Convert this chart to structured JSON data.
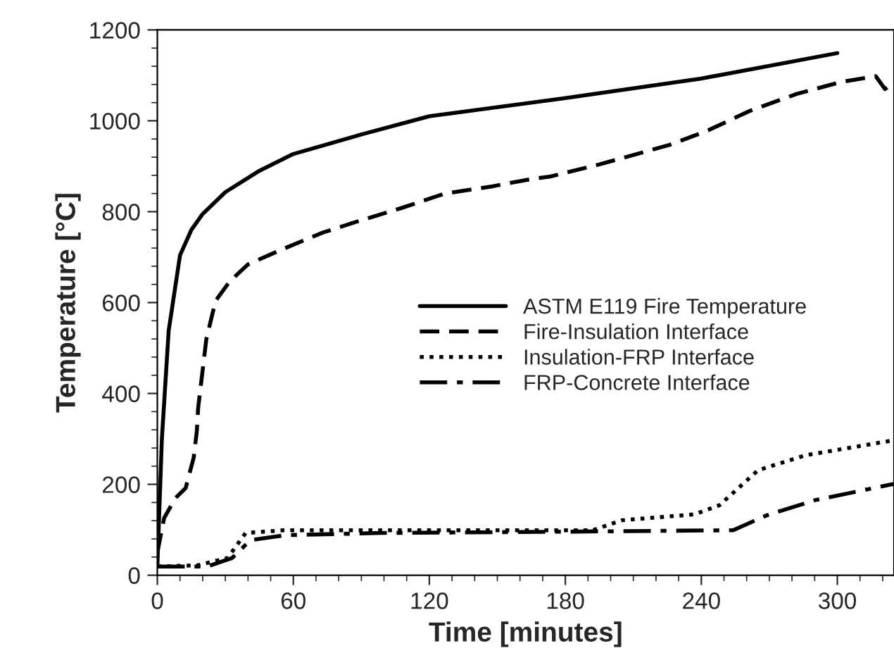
{
  "chart_data": {
    "type": "line",
    "xlabel": "Time [minutes]",
    "ylabel": "Temperature [°C]",
    "xlim": [
      0,
      325
    ],
    "xticks": [
      0,
      60,
      120,
      180,
      240,
      300
    ],
    "ylim": [
      0,
      1200
    ],
    "yticks": [
      0,
      200,
      400,
      600,
      800,
      1000,
      1200
    ],
    "grid": false,
    "legend": "right",
    "marker": "none",
    "series": [
      {
        "name": "ASTM E119 Fire Temperature",
        "color": "#000000",
        "line_style": "solid",
        "x": [
          0,
          2,
          5,
          10,
          15,
          20,
          30,
          45,
          60,
          90,
          120,
          180,
          240,
          300
        ],
        "values": [
          20,
          300,
          538,
          704,
          760,
          795,
          843,
          890,
          927,
          970,
          1010,
          1050,
          1093,
          1149
        ]
      },
      {
        "name": "Fire-Insulation Interface",
        "color": "#000000",
        "line_style": "dashed",
        "x": [
          0,
          3,
          8,
          12.5,
          16,
          17.4,
          18,
          21.6,
          25.7,
          32,
          40,
          55,
          73,
          86,
          107,
          127,
          148,
          165,
          173,
          195,
          226,
          243,
          261,
          282,
          302,
          317,
          321,
          324
        ],
        "values": [
          50,
          126,
          170,
          192,
          258,
          316,
          368,
          519,
          604,
          647,
          684,
          717,
          754,
          775,
          807,
          840,
          856,
          872,
          877,
          904,
          947,
          979,
          1021,
          1059,
          1086,
          1098,
          1070,
          1080
        ]
      },
      {
        "name": "Insulation-FRP Interface",
        "color": "#000000",
        "line_style": "dotted",
        "x": [
          0,
          18,
          31,
          39,
          56,
          120,
          192,
          205,
          237,
          248,
          265,
          286,
          325
        ],
        "values": [
          19,
          22,
          38,
          93,
          99,
          99,
          99,
          121,
          134,
          154,
          231,
          264,
          297
        ]
      },
      {
        "name": "FRP-Concrete Interface",
        "color": "#000000",
        "line_style": "dashdot",
        "x": [
          0,
          22,
          33,
          41,
          56,
          99,
          184,
          254,
          269,
          290,
          325
        ],
        "values": [
          19,
          19,
          38,
          77,
          88,
          93,
          96,
          99,
          132,
          165,
          201
        ]
      }
    ]
  }
}
